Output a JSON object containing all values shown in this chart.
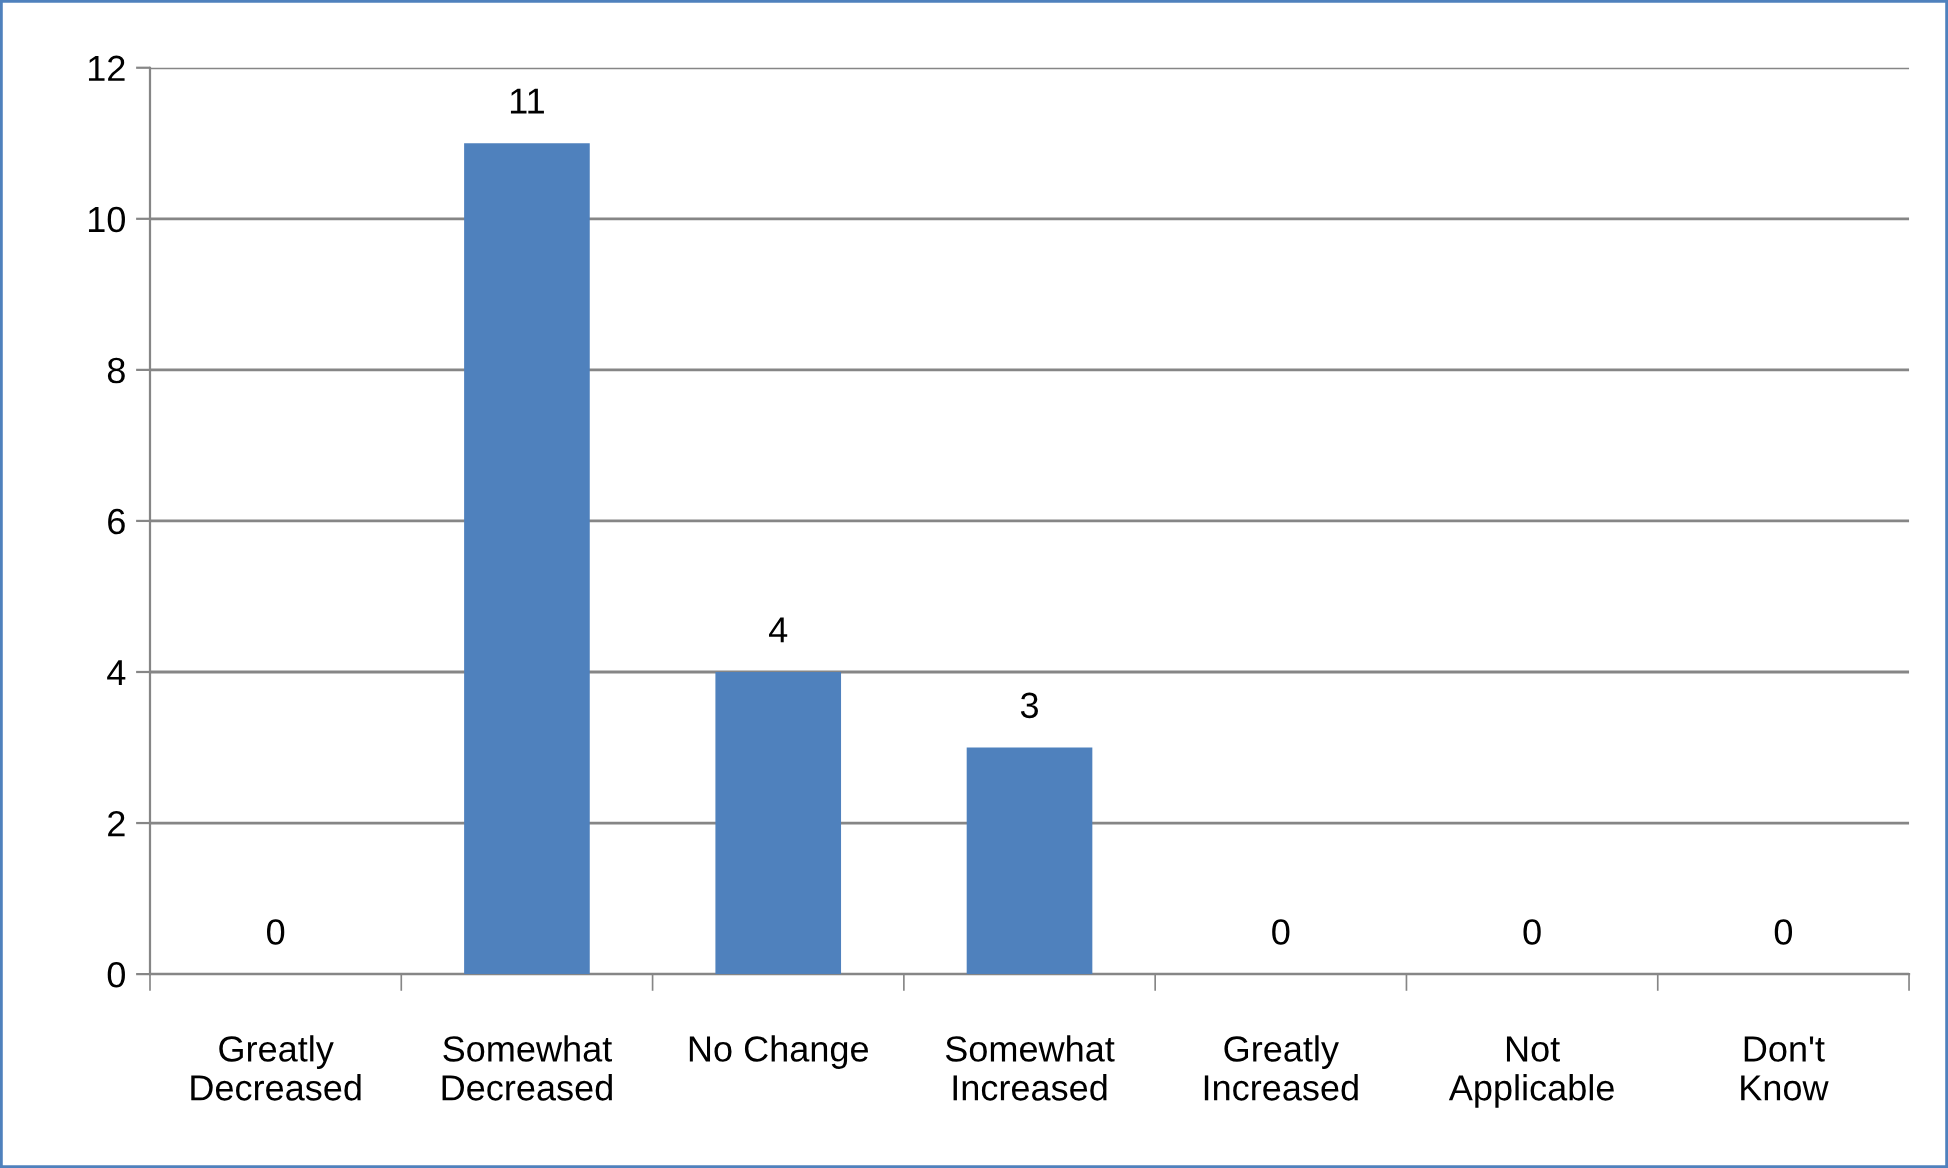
{
  "chart_data": {
    "type": "bar",
    "categories": [
      "Greatly\nDecreased",
      "Somewhat\nDecreased",
      "No Change",
      "Somewhat\nIncreased",
      "Greatly\nIncreased",
      "Not\nApplicable",
      "Don't\nKnow"
    ],
    "values": [
      0,
      11,
      4,
      3,
      0,
      0,
      0
    ],
    "color": "#4f81bd",
    "ylim": [
      0,
      12
    ],
    "yticks": [
      0,
      2,
      4,
      6,
      8,
      10,
      12
    ],
    "grid": "y",
    "data_labels": true
  }
}
